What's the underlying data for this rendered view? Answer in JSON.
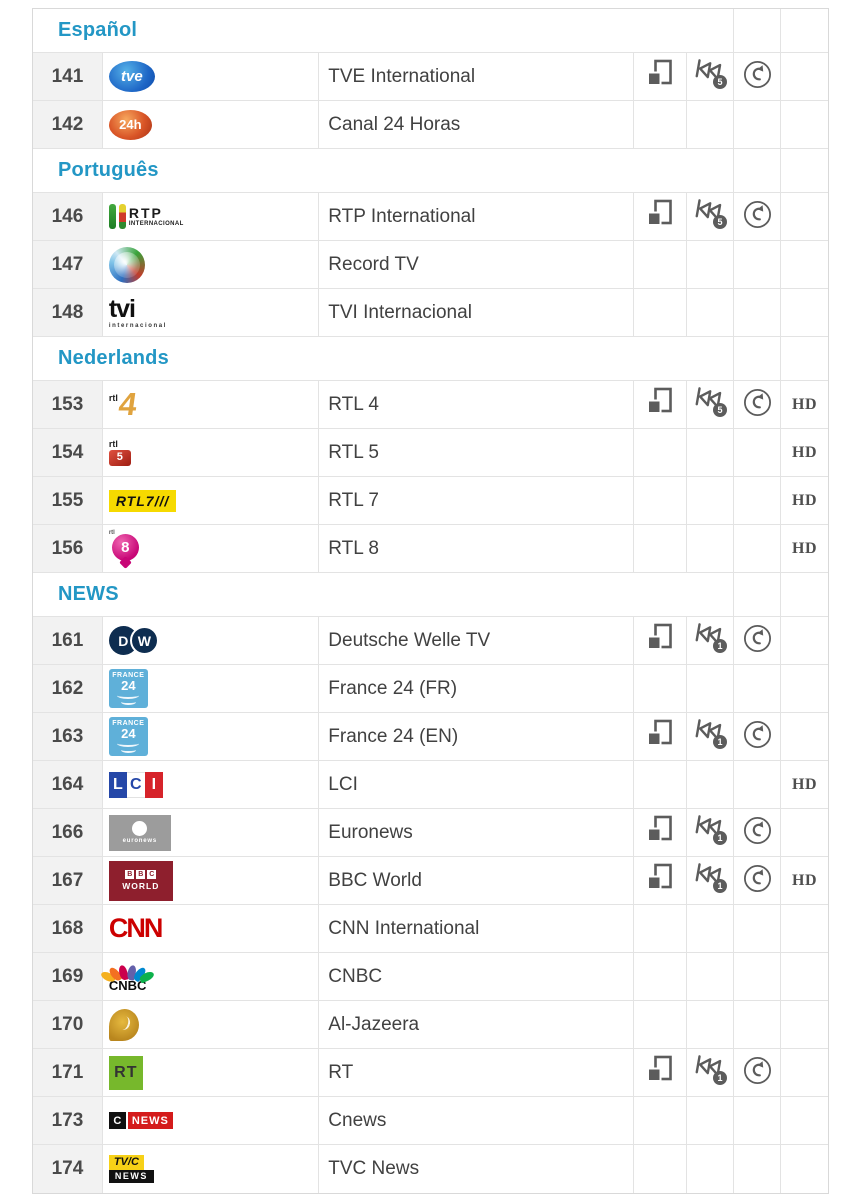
{
  "colors": {
    "accent": "#2397c5",
    "icon": "#5c5c5c",
    "number_bg": "#f2f2f2",
    "row_border": "#e3e3e3",
    "text": "#414141"
  },
  "hd_label": "HD",
  "icon_names": {
    "multiscreen": "multiscreen-icon",
    "replay": "skip-back-icon",
    "restart": "restart-icon"
  },
  "sections": [
    {
      "title": "Español",
      "rows": [
        {
          "number": "141",
          "name": "TVE International",
          "logo": "tve",
          "logo_text": "tve",
          "multiscreen": true,
          "replay_days": "5",
          "restart": true,
          "hd": false
        },
        {
          "number": "142",
          "name": "Canal 24 Horas",
          "logo": "c24h",
          "logo_text": "24h",
          "multiscreen": false,
          "replay_days": "",
          "restart": false,
          "hd": false
        }
      ]
    },
    {
      "title": "Português",
      "rows": [
        {
          "number": "146",
          "name": "RTP International",
          "logo": "rtp",
          "logo_text": "RTP",
          "logo_subtext": "INTERNACIONAL",
          "multiscreen": true,
          "replay_days": "5",
          "restart": true,
          "hd": false
        },
        {
          "number": "147",
          "name": "Record TV",
          "logo": "record",
          "logo_text": "",
          "multiscreen": false,
          "replay_days": "",
          "restart": false,
          "hd": false
        },
        {
          "number": "148",
          "name": "TVI Internacional",
          "logo": "tvi",
          "logo_text": "tvi",
          "logo_subtext": "internacional",
          "multiscreen": false,
          "replay_days": "",
          "restart": false,
          "hd": false
        }
      ]
    },
    {
      "title": "Nederlands",
      "rows": [
        {
          "number": "153",
          "name": "RTL 4",
          "logo": "rtl4",
          "logo_text": "rtl",
          "logo_accent": "4",
          "multiscreen": true,
          "replay_days": "5",
          "restart": true,
          "hd": true
        },
        {
          "number": "154",
          "name": "RTL 5",
          "logo": "rtl5",
          "logo_text": "rtl",
          "logo_accent": "5",
          "multiscreen": false,
          "replay_days": "",
          "restart": false,
          "hd": true
        },
        {
          "number": "155",
          "name": "RTL 7",
          "logo": "rtl7",
          "logo_text": "RTL7///",
          "multiscreen": false,
          "replay_days": "",
          "restart": false,
          "hd": true
        },
        {
          "number": "156",
          "name": "RTL 8",
          "logo": "rtl8",
          "logo_text": "rtl",
          "logo_accent": "8",
          "multiscreen": false,
          "replay_days": "",
          "restart": false,
          "hd": true
        }
      ]
    },
    {
      "title": "NEWS",
      "rows": [
        {
          "number": "161",
          "name": "Deutsche Welle TV",
          "logo": "dw",
          "logo_text": "DW",
          "multiscreen": true,
          "replay_days": "1",
          "restart": true,
          "hd": false
        },
        {
          "number": "162",
          "name": "France 24 (FR)",
          "logo": "f24",
          "logo_text": "FRANCE",
          "logo_accent": "24",
          "multiscreen": false,
          "replay_days": "",
          "restart": false,
          "hd": false
        },
        {
          "number": "163",
          "name": "France 24 (EN)",
          "logo": "f24",
          "logo_text": "FRANCE",
          "logo_accent": "24",
          "multiscreen": true,
          "replay_days": "1",
          "restart": true,
          "hd": false
        },
        {
          "number": "164",
          "name": "LCI",
          "logo": "lci",
          "logo_text": "LCI",
          "multiscreen": false,
          "replay_days": "",
          "restart": false,
          "hd": true
        },
        {
          "number": "166",
          "name": "Euronews",
          "logo": "euronews",
          "logo_text": "euronews",
          "multiscreen": true,
          "replay_days": "1",
          "restart": true,
          "hd": false
        },
        {
          "number": "167",
          "name": "BBC World",
          "logo": "bbc",
          "logo_text": "BBC",
          "logo_subtext": "WORLD",
          "multiscreen": true,
          "replay_days": "1",
          "restart": true,
          "hd": true
        },
        {
          "number": "168",
          "name": "CNN International",
          "logo": "cnn",
          "logo_text": "CNN",
          "multiscreen": false,
          "replay_days": "",
          "restart": false,
          "hd": false
        },
        {
          "number": "169",
          "name": "CNBC",
          "logo": "cnbc",
          "logo_text": "CNBC",
          "multiscreen": false,
          "replay_days": "",
          "restart": false,
          "hd": false
        },
        {
          "number": "170",
          "name": "Al-Jazeera",
          "logo": "alj",
          "logo_text": "",
          "multiscreen": false,
          "replay_days": "",
          "restart": false,
          "hd": false
        },
        {
          "number": "171",
          "name": "RT",
          "logo": "rt",
          "logo_text": "RT",
          "multiscreen": true,
          "replay_days": "1",
          "restart": true,
          "hd": false
        },
        {
          "number": "173",
          "name": "Cnews",
          "logo": "cnews",
          "logo_text": "C",
          "logo_subtext": "NEWS",
          "multiscreen": false,
          "replay_days": "",
          "restart": false,
          "hd": false
        },
        {
          "number": "174",
          "name": "TVC News",
          "logo": "tvc",
          "logo_text": "TV/C",
          "logo_subtext": "NEWS",
          "multiscreen": false,
          "replay_days": "",
          "restart": false,
          "hd": false
        }
      ]
    }
  ]
}
